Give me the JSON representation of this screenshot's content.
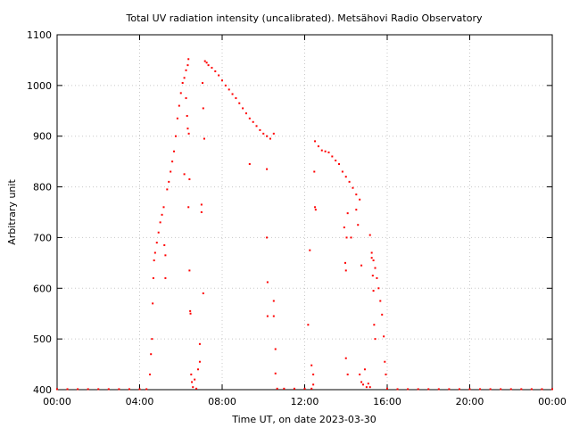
{
  "chart_data": {
    "type": "scatter",
    "title": "Total UV radiation intensity (uncalibrated). Metsähovi Radio Observatory",
    "xlabel": "Time UT, on date 2023-03-30",
    "ylabel": "Arbitrary unit",
    "xlim": [
      "00:00",
      "24:00"
    ],
    "ylim": [
      400,
      1100
    ],
    "x_ticks": [
      "00:00",
      "04:00",
      "08:00",
      "12:00",
      "16:00",
      "20:00",
      "00:00"
    ],
    "y_ticks": [
      "400",
      "500",
      "600",
      "700",
      "800",
      "900",
      "1000",
      "1100"
    ],
    "grid": true,
    "legend": "none",
    "marker_color": "#ff0000",
    "series": [
      {
        "points": [
          [
            "00:00",
            401
          ],
          [
            "00:30",
            401
          ],
          [
            "01:00",
            401
          ],
          [
            "01:30",
            401
          ],
          [
            "02:00",
            401
          ],
          [
            "02:30",
            401
          ],
          [
            "03:00",
            401
          ],
          [
            "03:30",
            401
          ],
          [
            "04:00",
            401
          ],
          [
            "04:20",
            401
          ],
          [
            "04:30",
            430
          ],
          [
            "04:33",
            470
          ],
          [
            "04:36",
            500
          ],
          [
            "04:38",
            570
          ],
          [
            "04:40",
            620
          ],
          [
            "04:42",
            655
          ],
          [
            "04:45",
            670
          ],
          [
            "04:50",
            690
          ],
          [
            "04:55",
            710
          ],
          [
            "05:00",
            730
          ],
          [
            "05:05",
            745
          ],
          [
            "05:10",
            760
          ],
          [
            "05:15",
            620
          ],
          [
            "05:15",
            665
          ],
          [
            "05:12",
            685
          ],
          [
            "05:20",
            795
          ],
          [
            "05:25",
            810
          ],
          [
            "05:30",
            830
          ],
          [
            "05:35",
            850
          ],
          [
            "05:40",
            870
          ],
          [
            "05:45",
            900
          ],
          [
            "05:50",
            935
          ],
          [
            "05:55",
            960
          ],
          [
            "06:00",
            985
          ],
          [
            "06:05",
            1005
          ],
          [
            "06:10",
            1015
          ],
          [
            "06:15",
            1030
          ],
          [
            "06:20",
            1040
          ],
          [
            "06:22",
            1052
          ],
          [
            "06:10",
            825
          ],
          [
            "06:15",
            975
          ],
          [
            "06:18",
            940
          ],
          [
            "06:20",
            915
          ],
          [
            "06:23",
            905
          ],
          [
            "06:25",
            815
          ],
          [
            "06:22",
            760
          ],
          [
            "06:25",
            635
          ],
          [
            "06:27",
            555
          ],
          [
            "06:28",
            550
          ],
          [
            "06:30",
            430
          ],
          [
            "06:32",
            415
          ],
          [
            "06:35",
            405
          ],
          [
            "06:40",
            420
          ],
          [
            "06:45",
            402
          ],
          [
            "06:50",
            440
          ],
          [
            "06:55",
            455
          ],
          [
            "06:55",
            490
          ],
          [
            "07:00",
            765
          ],
          [
            "07:00",
            750
          ],
          [
            "07:05",
            590
          ],
          [
            "07:08",
            895
          ],
          [
            "07:05",
            955
          ],
          [
            "07:03",
            1005
          ],
          [
            "07:10",
            1048
          ],
          [
            "07:15",
            1045
          ],
          [
            "07:20",
            1040
          ],
          [
            "07:30",
            1035
          ],
          [
            "07:40",
            1028
          ],
          [
            "07:50",
            1020
          ],
          [
            "08:00",
            1010
          ],
          [
            "08:10",
            1000
          ],
          [
            "08:20",
            992
          ],
          [
            "08:30",
            983
          ],
          [
            "08:40",
            975
          ],
          [
            "08:50",
            965
          ],
          [
            "09:00",
            955
          ],
          [
            "09:10",
            945
          ],
          [
            "09:20",
            935
          ],
          [
            "09:30",
            928
          ],
          [
            "09:40",
            920
          ],
          [
            "09:50",
            912
          ],
          [
            "10:00",
            905
          ],
          [
            "10:10",
            900
          ],
          [
            "10:20",
            895
          ],
          [
            "10:30",
            905
          ],
          [
            "09:20",
            845
          ],
          [
            "10:10",
            835
          ],
          [
            "10:10",
            700
          ],
          [
            "10:12",
            612
          ],
          [
            "10:12",
            545
          ],
          [
            "10:30",
            575
          ],
          [
            "10:30",
            545
          ],
          [
            "10:35",
            480
          ],
          [
            "10:35",
            432
          ],
          [
            "10:40",
            402
          ],
          [
            "11:00",
            402
          ],
          [
            "11:30",
            402
          ],
          [
            "12:00",
            402
          ],
          [
            "12:20",
            402
          ],
          [
            "12:10",
            528
          ],
          [
            "12:15",
            675
          ],
          [
            "12:20",
            448
          ],
          [
            "12:25",
            430
          ],
          [
            "12:25",
            410
          ],
          [
            "12:28",
            830
          ],
          [
            "12:30",
            760
          ],
          [
            "12:32",
            755
          ],
          [
            "12:30",
            890
          ],
          [
            "12:40",
            880
          ],
          [
            "12:50",
            872
          ],
          [
            "13:00",
            870
          ],
          [
            "13:10",
            868
          ],
          [
            "13:20",
            860
          ],
          [
            "13:30",
            852
          ],
          [
            "13:40",
            845
          ],
          [
            "13:50",
            830
          ],
          [
            "14:00",
            820
          ],
          [
            "14:10",
            810
          ],
          [
            "14:20",
            798
          ],
          [
            "14:30",
            785
          ],
          [
            "14:40",
            775
          ],
          [
            "13:55",
            720
          ],
          [
            "13:58",
            650
          ],
          [
            "14:00",
            635
          ],
          [
            "14:02",
            700
          ],
          [
            "14:05",
            748
          ],
          [
            "14:05",
            430
          ],
          [
            "14:00",
            462
          ],
          [
            "14:15",
            700
          ],
          [
            "14:30",
            755
          ],
          [
            "14:35",
            725
          ],
          [
            "14:45",
            645
          ],
          [
            "14:40",
            430
          ],
          [
            "14:45",
            415
          ],
          [
            "14:50",
            410
          ],
          [
            "14:55",
            440
          ],
          [
            "15:00",
            405
          ],
          [
            "15:05",
            412
          ],
          [
            "15:10",
            405
          ],
          [
            "15:10",
            705
          ],
          [
            "15:15",
            670
          ],
          [
            "15:20",
            655
          ],
          [
            "15:25",
            640
          ],
          [
            "15:30",
            620
          ],
          [
            "15:35",
            600
          ],
          [
            "15:40",
            575
          ],
          [
            "15:45",
            548
          ],
          [
            "15:50",
            505
          ],
          [
            "15:53",
            455
          ],
          [
            "15:56",
            430
          ],
          [
            "15:15",
            660
          ],
          [
            "15:18",
            625
          ],
          [
            "15:20",
            595
          ],
          [
            "15:22",
            528
          ],
          [
            "15:25",
            500
          ],
          [
            "16:00",
            402
          ],
          [
            "16:30",
            401
          ],
          [
            "17:00",
            401
          ],
          [
            "17:30",
            401
          ],
          [
            "18:00",
            401
          ],
          [
            "18:30",
            401
          ],
          [
            "19:00",
            401
          ],
          [
            "19:30",
            401
          ],
          [
            "20:00",
            401
          ],
          [
            "20:30",
            401
          ],
          [
            "21:00",
            401
          ],
          [
            "21:30",
            401
          ],
          [
            "22:00",
            401
          ],
          [
            "22:30",
            401
          ],
          [
            "23:00",
            401
          ],
          [
            "23:30",
            401
          ],
          [
            "24:00",
            401
          ]
        ]
      }
    ]
  }
}
